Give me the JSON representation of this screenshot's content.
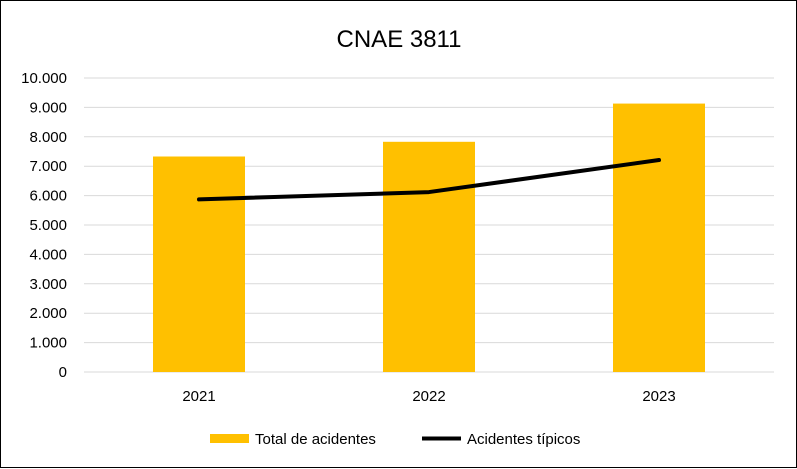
{
  "chart_data": {
    "type": "bar",
    "title": "CNAE 3811",
    "xlabel": "",
    "ylabel": "",
    "categories": [
      "2021",
      "2022",
      "2023"
    ],
    "ylim": [
      0,
      10000
    ],
    "y_ticks": [
      "0",
      "1.000",
      "2.000",
      "3.000",
      "4.000",
      "5.000",
      "6.000",
      "7.000",
      "8.000",
      "9.000",
      "10.000"
    ],
    "grid": true,
    "legend_position": "bottom",
    "series": [
      {
        "name": "Total de acidentes",
        "type": "bar",
        "color": "#FFC000",
        "values": [
          7330,
          7830,
          9130
        ]
      },
      {
        "name": "Acidentes típicos",
        "type": "line",
        "color": "#000000",
        "values": [
          5870,
          6120,
          7210
        ]
      }
    ]
  }
}
